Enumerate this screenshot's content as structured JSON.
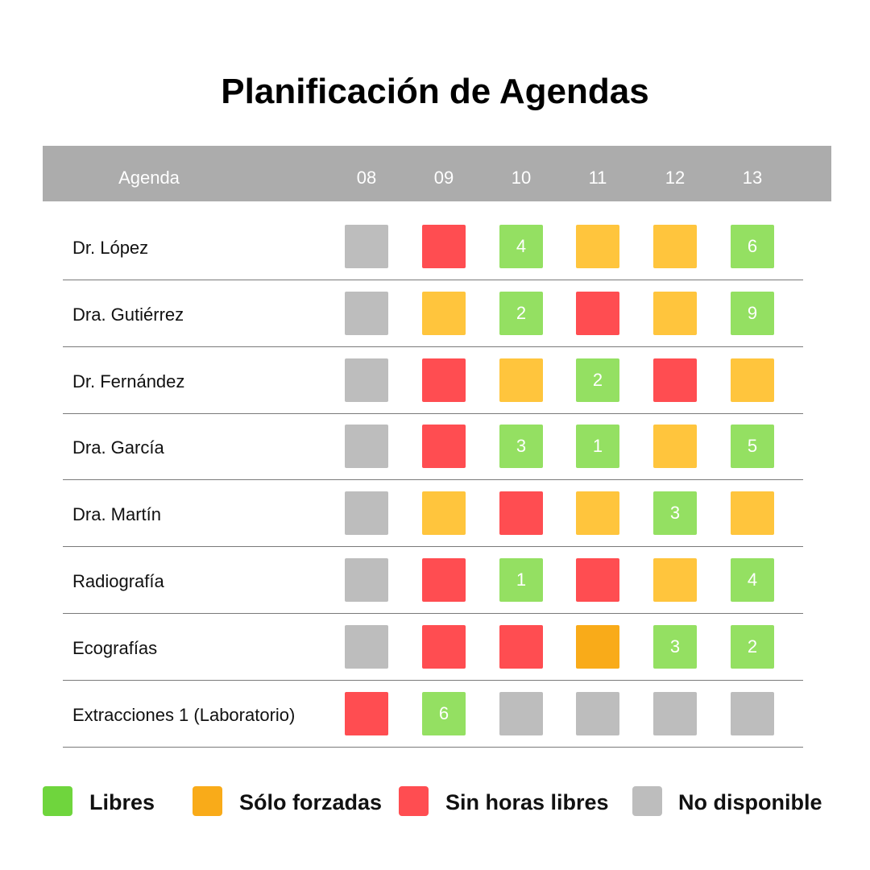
{
  "title": "Planificación de Agendas",
  "colors": {
    "header_bg": "#acacac",
    "free": "#94e062",
    "forced": "#ffc53d",
    "forced_dark": "#f9ab19",
    "none": "#ff4d51",
    "unavailable": "#bdbdbd",
    "legend_free": "#6fd53d",
    "legend_forced": "#f9ab19",
    "legend_none": "#ff4d51",
    "legend_unavailable": "#bdbdbd"
  },
  "header": {
    "agenda_label": "Agenda",
    "hours": [
      "08",
      "09",
      "10",
      "11",
      "12",
      "13"
    ]
  },
  "rows": [
    {
      "label": "Dr. López",
      "cells": [
        {
          "status": "unavailable",
          "count": ""
        },
        {
          "status": "none",
          "count": ""
        },
        {
          "status": "free",
          "count": "4"
        },
        {
          "status": "forced",
          "count": ""
        },
        {
          "status": "forced",
          "count": ""
        },
        {
          "status": "free",
          "count": "6"
        }
      ]
    },
    {
      "label": "Dra. Gutiérrez",
      "cells": [
        {
          "status": "unavailable",
          "count": ""
        },
        {
          "status": "forced",
          "count": ""
        },
        {
          "status": "free",
          "count": "2"
        },
        {
          "status": "none",
          "count": ""
        },
        {
          "status": "forced",
          "count": ""
        },
        {
          "status": "free",
          "count": "9"
        }
      ]
    },
    {
      "label": "Dr. Fernández",
      "cells": [
        {
          "status": "unavailable",
          "count": ""
        },
        {
          "status": "none",
          "count": ""
        },
        {
          "status": "forced",
          "count": ""
        },
        {
          "status": "free",
          "count": "2"
        },
        {
          "status": "none",
          "count": ""
        },
        {
          "status": "forced",
          "count": ""
        }
      ]
    },
    {
      "label": "Dra. García",
      "cells": [
        {
          "status": "unavailable",
          "count": ""
        },
        {
          "status": "none",
          "count": ""
        },
        {
          "status": "free",
          "count": "3"
        },
        {
          "status": "free",
          "count": "1"
        },
        {
          "status": "forced",
          "count": ""
        },
        {
          "status": "free",
          "count": "5"
        }
      ]
    },
    {
      "label": "Dra. Martín",
      "cells": [
        {
          "status": "unavailable",
          "count": ""
        },
        {
          "status": "forced",
          "count": ""
        },
        {
          "status": "none",
          "count": ""
        },
        {
          "status": "forced",
          "count": ""
        },
        {
          "status": "free",
          "count": "3"
        },
        {
          "status": "forced",
          "count": ""
        }
      ]
    },
    {
      "label": "Radiografía",
      "cells": [
        {
          "status": "unavailable",
          "count": ""
        },
        {
          "status": "none",
          "count": ""
        },
        {
          "status": "free",
          "count": "1"
        },
        {
          "status": "none",
          "count": ""
        },
        {
          "status": "forced",
          "count": ""
        },
        {
          "status": "free",
          "count": "4"
        }
      ]
    },
    {
      "label": "Ecografías",
      "cells": [
        {
          "status": "unavailable",
          "count": ""
        },
        {
          "status": "none",
          "count": ""
        },
        {
          "status": "none",
          "count": ""
        },
        {
          "status": "forced_dark",
          "count": ""
        },
        {
          "status": "free",
          "count": "3"
        },
        {
          "status": "free",
          "count": "2"
        }
      ]
    },
    {
      "label": "Extracciones 1 (Laboratorio)",
      "cells": [
        {
          "status": "none",
          "count": ""
        },
        {
          "status": "free",
          "count": "6"
        },
        {
          "status": "unavailable",
          "count": ""
        },
        {
          "status": "unavailable",
          "count": ""
        },
        {
          "status": "unavailable",
          "count": ""
        },
        {
          "status": "unavailable",
          "count": ""
        }
      ]
    }
  ],
  "legend": [
    {
      "key": "legend_free",
      "label": "Libres"
    },
    {
      "key": "legend_forced",
      "label": "Sólo forzadas"
    },
    {
      "key": "legend_none",
      "label": "Sin horas libres"
    },
    {
      "key": "legend_unavailable",
      "label": "No disponible"
    }
  ]
}
